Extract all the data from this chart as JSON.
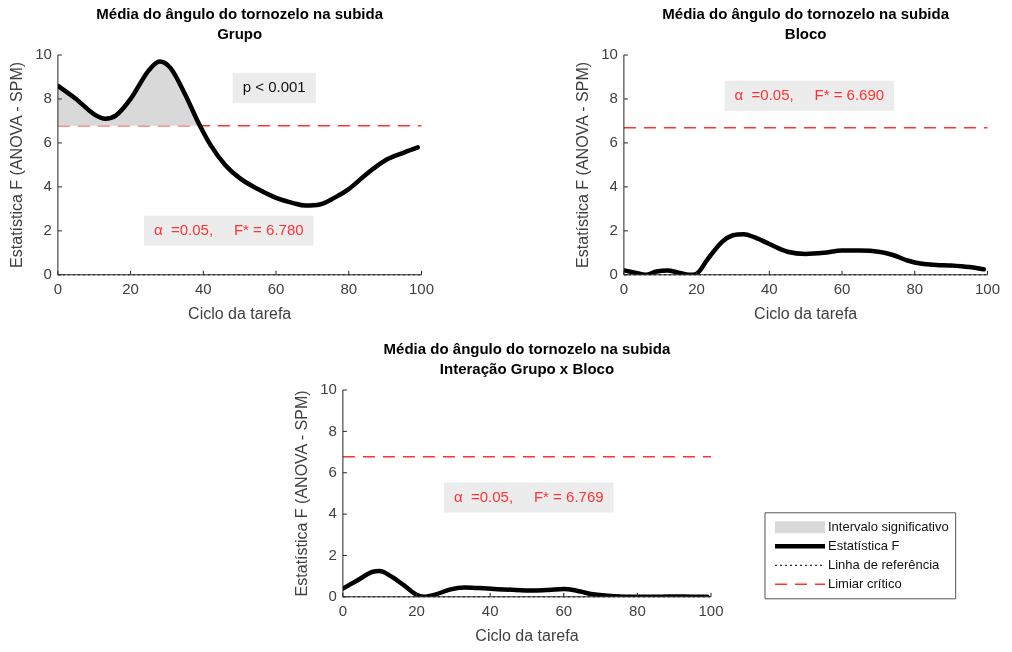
{
  "chart_data": [
    {
      "type": "line",
      "title": "Média do ângulo do tornozelo na subida",
      "subtitle": "Grupo",
      "xlabel": "Ciclo da tarefa",
      "ylabel": "Estatística F (ANOVA - SPM)",
      "xlim": [
        0,
        100
      ],
      "xticks": [
        0,
        20,
        40,
        60,
        80,
        100
      ],
      "ylim": [
        0,
        10
      ],
      "yticks": [
        0,
        2,
        4,
        6,
        8,
        10
      ],
      "grid": false,
      "legend": false,
      "marker": "none",
      "series": [
        {
          "type": "area",
          "color": "#d9d9d9",
          "x": [
            0,
            5,
            10,
            13,
            16,
            20,
            25,
            28,
            31,
            35,
            39
          ],
          "values": [
            8.6,
            8.0,
            7.3,
            7.1,
            7.25,
            8.0,
            9.3,
            9.7,
            9.4,
            8.2,
            6.8
          ]
        },
        {
          "color": "#000000",
          "x": [
            0,
            5,
            10,
            13,
            16,
            20,
            25,
            28,
            31,
            35,
            39,
            42,
            46,
            50,
            55,
            60,
            65,
            68,
            72,
            76,
            80,
            85,
            90,
            95,
            99
          ],
          "values": [
            8.6,
            8.0,
            7.3,
            7.1,
            7.25,
            8.0,
            9.3,
            9.7,
            9.4,
            8.2,
            6.8,
            5.9,
            5.0,
            4.4,
            3.9,
            3.5,
            3.25,
            3.15,
            3.2,
            3.5,
            3.9,
            4.6,
            5.2,
            5.55,
            5.8
          ]
        }
      ],
      "ref_lines": [
        {
          "axis": "y",
          "value": 0,
          "color": "#000000",
          "line_style": "dotted"
        },
        {
          "axis": "y",
          "value": 6.78,
          "color": "#ff3333",
          "line_style": "dashed"
        }
      ],
      "annotations": [
        "p < 0.001",
        "α  =0.05,     F* = 6.780"
      ]
    },
    {
      "type": "line",
      "title": "Média do ângulo do tornozelo na subida",
      "subtitle": "Bloco",
      "xlabel": "Ciclo da tarefa",
      "ylabel": "Estatística F (ANOVA - SPM)",
      "xlim": [
        0,
        100
      ],
      "xticks": [
        0,
        20,
        40,
        60,
        80,
        100
      ],
      "ylim": [
        0,
        10
      ],
      "yticks": [
        0,
        2,
        4,
        6,
        8,
        10
      ],
      "grid": false,
      "legend": false,
      "marker": "none",
      "series": [
        {
          "color": "#000000",
          "x": [
            0,
            3,
            6,
            9,
            12,
            15,
            18,
            20,
            23,
            27,
            30,
            33,
            36,
            40,
            45,
            50,
            55,
            60,
            65,
            70,
            74,
            78,
            82,
            86,
            90,
            95,
            99
          ],
          "values": [
            0.2,
            0.1,
            0.0,
            0.15,
            0.2,
            0.1,
            0.0,
            0.05,
            0.7,
            1.5,
            1.8,
            1.85,
            1.7,
            1.4,
            1.05,
            0.95,
            1.0,
            1.1,
            1.1,
            1.05,
            0.9,
            0.65,
            0.5,
            0.45,
            0.42,
            0.35,
            0.25
          ]
        }
      ],
      "ref_lines": [
        {
          "axis": "y",
          "value": 0,
          "color": "#000000",
          "line_style": "dotted"
        },
        {
          "axis": "y",
          "value": 6.69,
          "color": "#ff3333",
          "line_style": "dashed"
        }
      ],
      "annotations": [
        "α  =0.05,     F* = 6.690"
      ]
    },
    {
      "type": "line",
      "title": "Média do ângulo do tornozelo na subida",
      "subtitle": "Interação Grupo x Bloco",
      "xlabel": "Ciclo da tarefa",
      "ylabel": "Estatística F (ANOVA - SPM)",
      "xlim": [
        0,
        100
      ],
      "xticks": [
        0,
        20,
        40,
        60,
        80,
        100
      ],
      "ylim": [
        0,
        10
      ],
      "yticks": [
        0,
        2,
        4,
        6,
        8,
        10
      ],
      "grid": false,
      "legend": "right",
      "marker": "none",
      "series": [
        {
          "type": "area",
          "name": "Intervalo significativo",
          "color": "#d9d9d9"
        },
        {
          "name": "Estatística F",
          "color": "#000000",
          "x": [
            0,
            4,
            8,
            10,
            13,
            17,
            20,
            22,
            25,
            29,
            33,
            37,
            42,
            47,
            52,
            56,
            60,
            63,
            67,
            72,
            78,
            85,
            92,
            99
          ],
          "values": [
            0.4,
            0.8,
            1.2,
            1.25,
            1.0,
            0.5,
            0.1,
            0.0,
            0.1,
            0.35,
            0.45,
            0.42,
            0.37,
            0.33,
            0.3,
            0.33,
            0.38,
            0.32,
            0.15,
            0.05,
            0.0,
            0.0,
            0.02,
            0.0
          ]
        }
      ],
      "ref_lines": [
        {
          "axis": "y",
          "value": 0,
          "color": "#000000",
          "line_style": "dotted",
          "label": "Linha de referência"
        },
        {
          "axis": "y",
          "value": 6.769,
          "color": "#ff3333",
          "line_style": "dashed",
          "label": "Limiar crítico"
        }
      ],
      "annotations": [
        "α  =0.05,     F* = 6.769"
      ]
    }
  ]
}
